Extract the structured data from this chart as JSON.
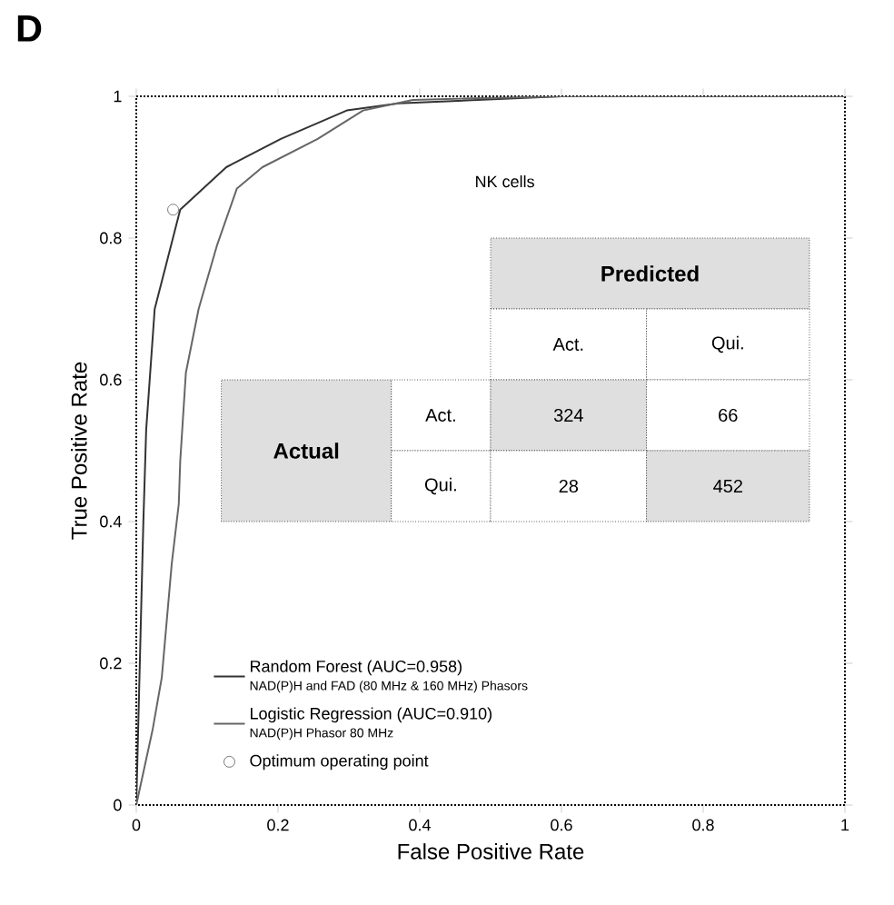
{
  "chart_data": {
    "type": "line",
    "xlabel": "False Positive Rate",
    "ylabel": "True Positive Rate",
    "xlim": [
      0,
      1
    ],
    "ylim": [
      0,
      1
    ],
    "xticks": [
      0,
      0.2,
      0.4,
      0.6,
      0.8,
      1
    ],
    "yticks": [
      0,
      0.2,
      0.4,
      0.6,
      0.8,
      1
    ],
    "legend": "bottom left",
    "grid": false,
    "series": [
      {
        "name": "Random Forest (AUC=0.958)",
        "color": "#333333",
        "type": "line",
        "x": [
          0,
          0.005,
          0.01,
          0.014,
          0.026,
          0.044,
          0.062,
          0.127,
          0.204,
          0.297,
          0.37,
          0.6,
          1
        ],
        "values": [
          0,
          0.2,
          0.4,
          0.53,
          0.7,
          0.77,
          0.84,
          0.9,
          0.94,
          0.98,
          0.99,
          1,
          1
        ]
      },
      {
        "name": "Logistic Regression (AUC=0.910)",
        "color": "#666666",
        "type": "line",
        "x": [
          0,
          0.023,
          0.036,
          0.05,
          0.06,
          0.062,
          0.07,
          0.088,
          0.114,
          0.142,
          0.178,
          0.256,
          0.32,
          0.39,
          0.6,
          1
        ],
        "values": [
          0,
          0.106,
          0.18,
          0.34,
          0.425,
          0.485,
          0.61,
          0.7,
          0.79,
          0.87,
          0.9,
          0.94,
          0.98,
          0.995,
          1,
          1
        ]
      },
      {
        "name": "Optimum operating point",
        "color": "#555555",
        "type": "scatter",
        "marker": "circle",
        "x": [
          0.052
        ],
        "values": [
          0.84
        ]
      }
    ],
    "annotations": [
      "NK cells",
      "D",
      "Predicted",
      "Actual",
      "Act.",
      "Qui.",
      "Act.",
      "Qui.",
      "324",
      "66",
      "28",
      "452",
      "NAD(P)H and FAD (80 MHz & 160 MHz) Phasors",
      "NAD(P)H Phasor 80 MHz"
    ]
  }
}
